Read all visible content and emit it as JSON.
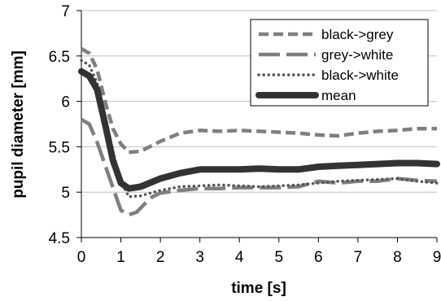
{
  "chart_data": {
    "type": "line",
    "xlabel": "time [s]",
    "ylabel": "pupil diameter [mm]",
    "xlim": [
      0,
      9
    ],
    "ylim": [
      4.5,
      7
    ],
    "x_ticks": [
      "0",
      "1",
      "2",
      "3",
      "4",
      "5",
      "6",
      "7",
      "8",
      "9"
    ],
    "y_ticks": [
      "4.5",
      "5",
      "5.5",
      "6",
      "6.5",
      "7"
    ],
    "grid": "horizontal",
    "legend_position": "top-right",
    "series": [
      {
        "name": "black->grey",
        "style": "short-dash",
        "color": "#7f7f7f",
        "points": [
          [
            0,
            6.58
          ],
          [
            0.2,
            6.53
          ],
          [
            0.4,
            6.35
          ],
          [
            0.6,
            6.0
          ],
          [
            0.8,
            5.7
          ],
          [
            1.0,
            5.53
          ],
          [
            1.2,
            5.44
          ],
          [
            1.5,
            5.45
          ],
          [
            2.0,
            5.56
          ],
          [
            2.5,
            5.65
          ],
          [
            3.0,
            5.68
          ],
          [
            3.5,
            5.67
          ],
          [
            4.0,
            5.68
          ],
          [
            4.5,
            5.67
          ],
          [
            5.0,
            5.66
          ],
          [
            5.5,
            5.65
          ],
          [
            6.0,
            5.63
          ],
          [
            6.5,
            5.62
          ],
          [
            7.0,
            5.65
          ],
          [
            7.5,
            5.67
          ],
          [
            8.0,
            5.68
          ],
          [
            8.5,
            5.7
          ],
          [
            9.0,
            5.7
          ]
        ]
      },
      {
        "name": "grey->white",
        "style": "long-dash",
        "color": "#7f7f7f",
        "points": [
          [
            0,
            5.8
          ],
          [
            0.2,
            5.75
          ],
          [
            0.4,
            5.55
          ],
          [
            0.6,
            5.3
          ],
          [
            0.8,
            5.05
          ],
          [
            1.0,
            4.8
          ],
          [
            1.2,
            4.75
          ],
          [
            1.4,
            4.78
          ],
          [
            1.6,
            4.87
          ],
          [
            1.8,
            4.95
          ],
          [
            2.0,
            4.99
          ],
          [
            2.5,
            5.02
          ],
          [
            3.0,
            5.04
          ],
          [
            3.5,
            5.04
          ],
          [
            4.0,
            5.05
          ],
          [
            4.5,
            5.05
          ],
          [
            5.0,
            5.05
          ],
          [
            5.5,
            5.06
          ],
          [
            6.0,
            5.12
          ],
          [
            6.5,
            5.1
          ],
          [
            7.0,
            5.12
          ],
          [
            7.5,
            5.12
          ],
          [
            8.0,
            5.15
          ],
          [
            8.5,
            5.13
          ],
          [
            9.0,
            5.12
          ]
        ]
      },
      {
        "name": "black->white",
        "style": "dotted",
        "color": "#555555",
        "points": [
          [
            0,
            6.45
          ],
          [
            0.2,
            6.4
          ],
          [
            0.4,
            6.2
          ],
          [
            0.6,
            5.85
          ],
          [
            0.8,
            5.45
          ],
          [
            1.0,
            5.12
          ],
          [
            1.2,
            4.95
          ],
          [
            1.5,
            4.96
          ],
          [
            2.0,
            5.02
          ],
          [
            2.5,
            5.06
          ],
          [
            3.0,
            5.07
          ],
          [
            3.5,
            5.08
          ],
          [
            4.0,
            5.07
          ],
          [
            4.5,
            5.06
          ],
          [
            5.0,
            5.07
          ],
          [
            5.5,
            5.08
          ],
          [
            6.0,
            5.1
          ],
          [
            6.5,
            5.12
          ],
          [
            7.0,
            5.13
          ],
          [
            7.5,
            5.14
          ],
          [
            8.0,
            5.15
          ],
          [
            8.5,
            5.12
          ],
          [
            9.0,
            5.1
          ]
        ]
      },
      {
        "name": "mean",
        "style": "solid-thick",
        "color": "#333333",
        "points": [
          [
            0,
            6.33
          ],
          [
            0.2,
            6.28
          ],
          [
            0.4,
            6.13
          ],
          [
            0.6,
            5.75
          ],
          [
            0.8,
            5.35
          ],
          [
            1.0,
            5.1
          ],
          [
            1.2,
            5.04
          ],
          [
            1.5,
            5.06
          ],
          [
            2.0,
            5.15
          ],
          [
            2.5,
            5.21
          ],
          [
            3.0,
            5.25
          ],
          [
            3.5,
            5.25
          ],
          [
            4.0,
            5.25
          ],
          [
            4.5,
            5.26
          ],
          [
            5.0,
            5.25
          ],
          [
            5.5,
            5.25
          ],
          [
            6.0,
            5.28
          ],
          [
            6.5,
            5.29
          ],
          [
            7.0,
            5.3
          ],
          [
            7.5,
            5.31
          ],
          [
            8.0,
            5.32
          ],
          [
            8.5,
            5.32
          ],
          [
            9.0,
            5.31
          ]
        ]
      }
    ]
  }
}
